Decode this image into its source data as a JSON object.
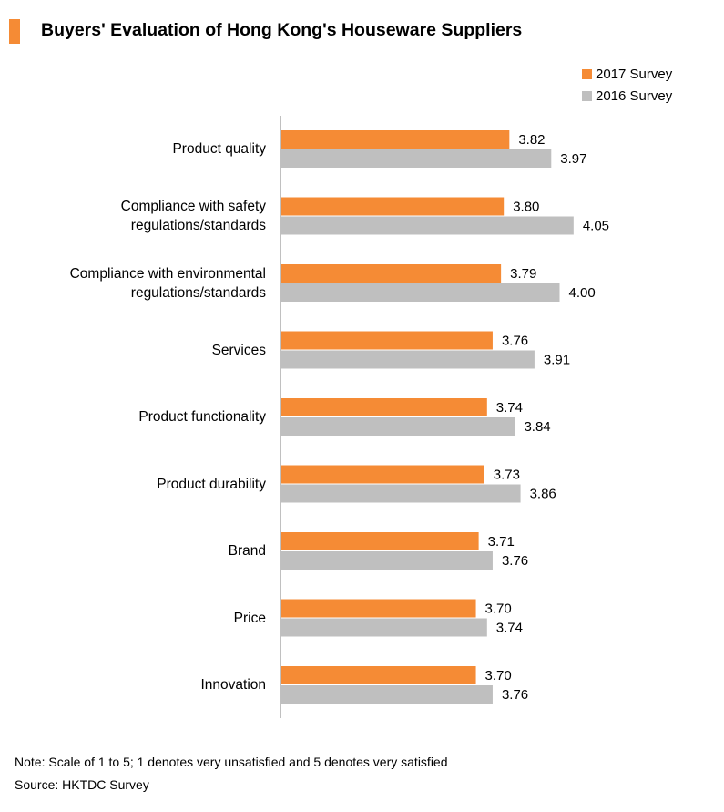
{
  "title": "Buyers' Evaluation of Hong Kong's Houseware Suppliers",
  "notes": {
    "note": "Note: Scale of 1 to 5; 1 denotes very unsatisfied and 5 denotes very satisfied",
    "source": "Source: HKTDC Survey"
  },
  "colors": {
    "accent": "#f58b35",
    "survey_2017": "#f58b35",
    "survey_2016": "#bfbfbf",
    "axis": "#808080"
  },
  "chart_data": {
    "type": "bar",
    "orientation": "horizontal",
    "title": "Buyers' Evaluation of Hong Kong's Houseware Suppliers",
    "categories": [
      [
        "Product quality"
      ],
      [
        "Compliance with safety",
        "regulations/standards"
      ],
      [
        "Compliance with environmental",
        "regulations/standards"
      ],
      [
        "Services"
      ],
      [
        "Product functionality"
      ],
      [
        "Product durability"
      ],
      [
        "Brand"
      ],
      [
        "Price"
      ],
      [
        "Innovation"
      ]
    ],
    "series": [
      {
        "name": "2017 Survey",
        "color": "#f58b35",
        "values": [
          3.82,
          3.8,
          3.79,
          3.76,
          3.74,
          3.73,
          3.71,
          3.7,
          3.7
        ]
      },
      {
        "name": "2016 Survey",
        "color": "#bfbfbf",
        "values": [
          3.97,
          4.05,
          4.0,
          3.91,
          3.84,
          3.86,
          3.76,
          3.74,
          3.76
        ]
      }
    ],
    "data_labels": true,
    "xlim": [
      3.0,
      4.2
    ],
    "grid": false,
    "legend_position": "top-right"
  }
}
